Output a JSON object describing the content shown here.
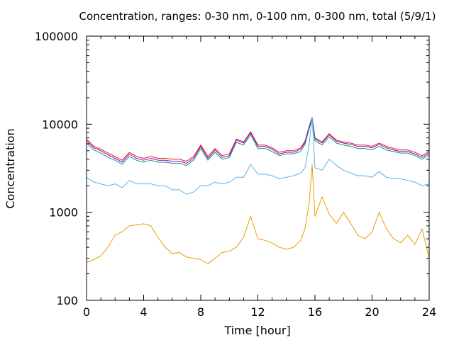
{
  "chart_data": {
    "type": "line",
    "title": "Concentration, ranges: 0-30 nm, 0-100 nm, 0-300 nm, total (5/9/1)",
    "xlabel": "Time [hour]",
    "ylabel": "Concentration",
    "xlim": [
      0,
      24
    ],
    "ylim": [
      100,
      100000
    ],
    "yscale": "log",
    "grid": false,
    "legend": "none",
    "x_ticks": [
      0,
      4,
      8,
      12,
      16,
      20,
      24
    ],
    "x_tick_labels": [
      "0",
      "4",
      "8",
      "12",
      "16",
      "20",
      "24"
    ],
    "y_ticks": [
      100,
      1000,
      10000,
      100000
    ],
    "y_tick_labels": [
      "100",
      "1000",
      "10000",
      "100000"
    ],
    "x": [
      0,
      0.5,
      1,
      1.5,
      2,
      2.5,
      3,
      3.5,
      4,
      4.5,
      5,
      5.5,
      6,
      6.5,
      7,
      7.5,
      8,
      8.5,
      9,
      9.5,
      10,
      10.5,
      11,
      11.5,
      12,
      12.5,
      13,
      13.5,
      14,
      14.5,
      15,
      15.3,
      15.6,
      15.8,
      16,
      16.5,
      17,
      17.5,
      18,
      18.5,
      19,
      19.5,
      20,
      20.5,
      21,
      21.5,
      22,
      22.5,
      23,
      23.5,
      24
    ],
    "series": [
      {
        "color": "#e51e10",
        "values": [
          6800,
          5600,
          5200,
          4700,
          4300,
          3900,
          4800,
          4300,
          4100,
          4300,
          4100,
          4100,
          4000,
          4000,
          3800,
          4300,
          5800,
          4300,
          5300,
          4400,
          4600,
          6800,
          6300,
          8200,
          5800,
          5800,
          5400,
          4800,
          5000,
          5000,
          5400,
          6400,
          9500,
          12000,
          7000,
          6300,
          7800,
          6600,
          6300,
          6100,
          5800,
          5800,
          5600,
          6100,
          5600,
          5300,
          5100,
          5100,
          4800,
          4400,
          4900
        ]
      },
      {
        "color": "#9400d3",
        "values": [
          6500,
          5400,
          5000,
          4500,
          4100,
          3700,
          4600,
          4100,
          3900,
          4100,
          3900,
          3900,
          3800,
          3800,
          3600,
          4100,
          5600,
          4100,
          5100,
          4200,
          4400,
          6600,
          6100,
          8000,
          5600,
          5600,
          5200,
          4600,
          4800,
          4800,
          5200,
          6200,
          9300,
          11800,
          6800,
          6100,
          7600,
          6400,
          6100,
          5900,
          5600,
          5600,
          5400,
          5900,
          5400,
          5100,
          4900,
          4900,
          4600,
          4200,
          4700
        ]
      },
      {
        "color": "#009e73",
        "values": [
          6100,
          5100,
          4700,
          4200,
          3900,
          3500,
          4300,
          3900,
          3700,
          3900,
          3700,
          3700,
          3600,
          3600,
          3400,
          3900,
          5300,
          3900,
          4800,
          4000,
          4200,
          6200,
          5800,
          7600,
          5300,
          5300,
          4900,
          4400,
          4600,
          4600,
          4900,
          5900,
          8900,
          11200,
          6500,
          5800,
          7200,
          6100,
          5800,
          5600,
          5300,
          5300,
          5100,
          5600,
          5100,
          4900,
          4700,
          4700,
          4400,
          4000,
          4500
        ]
      },
      {
        "color": "#56b4e9",
        "values": [
          2500,
          2200,
          2100,
          2000,
          2100,
          1900,
          2300,
          2100,
          2100,
          2100,
          2000,
          2000,
          1800,
          1800,
          1600,
          1700,
          2000,
          2000,
          2200,
          2100,
          2200,
          2500,
          2500,
          3500,
          2700,
          2700,
          2600,
          2400,
          2500,
          2600,
          2800,
          3200,
          6000,
          12000,
          3200,
          3000,
          4000,
          3400,
          3000,
          2800,
          2600,
          2600,
          2500,
          2900,
          2500,
          2400,
          2400,
          2300,
          2200,
          2000,
          2100
        ]
      },
      {
        "color": "#e69f00",
        "values": [
          270,
          290,
          320,
          400,
          550,
          600,
          700,
          720,
          740,
          700,
          520,
          400,
          340,
          350,
          310,
          300,
          290,
          260,
          300,
          350,
          360,
          400,
          520,
          900,
          500,
          480,
          450,
          400,
          380,
          400,
          480,
          650,
          1300,
          3500,
          900,
          1500,
          950,
          750,
          1000,
          750,
          550,
          500,
          600,
          1000,
          650,
          500,
          450,
          550,
          430,
          650,
          300
        ]
      }
    ]
  }
}
